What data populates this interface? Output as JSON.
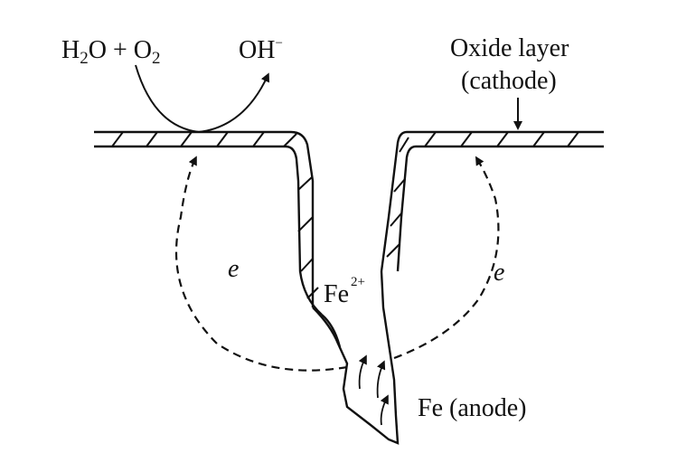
{
  "labels": {
    "reactant_h2o": "H",
    "reactant_h2o_sub": "2",
    "reactant_h2o_tail": "O + O",
    "reactant_o2_sub": "2",
    "product": "OH",
    "product_sup": "−",
    "oxide_line1": "Oxide layer",
    "oxide_line2": "(cathode)",
    "electron_left": "e",
    "electron_right": "e",
    "ion": "Fe",
    "ion_sup": "2+",
    "anode": "Fe (anode)"
  },
  "colors": {
    "ink": "#111111",
    "background": "#ffffff"
  }
}
